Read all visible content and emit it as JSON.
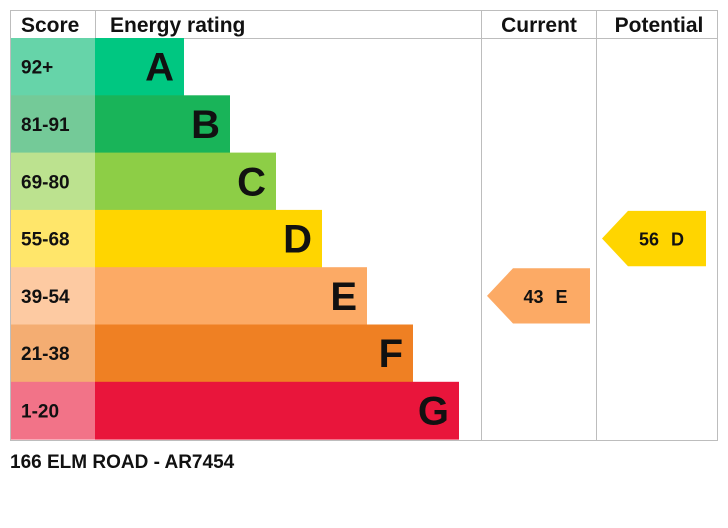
{
  "headers": {
    "score": "Score",
    "rating": "Energy rating",
    "current": "Current",
    "potential": "Potential"
  },
  "chart_data": {
    "type": "bar",
    "bands": [
      {
        "letter": "A",
        "range": "92+",
        "color": "#00c781",
        "score_color": "#66d4a9"
      },
      {
        "letter": "B",
        "range": "81-91",
        "color": "#19b459",
        "score_color": "#74ca98"
      },
      {
        "letter": "C",
        "range": "69-80",
        "color": "#8dce46",
        "score_color": "#bce28f"
      },
      {
        "letter": "D",
        "range": "55-68",
        "color": "#ffd500",
        "score_color": "#ffe66a"
      },
      {
        "letter": "E",
        "range": "39-54",
        "color": "#fcaa65",
        "score_color": "#fdcaa2"
      },
      {
        "letter": "F",
        "range": "21-38",
        "color": "#ef8023",
        "score_color": "#f4ad72"
      },
      {
        "letter": "G",
        "range": "1-20",
        "color": "#e9153b",
        "score_color": "#f27388"
      }
    ],
    "current": {
      "value": 43,
      "letter": "E",
      "color": "#fcaa65"
    },
    "potential": {
      "value": 56,
      "letter": "D",
      "color": "#ffd500"
    }
  },
  "address": "166 ELM ROAD - AR7454"
}
